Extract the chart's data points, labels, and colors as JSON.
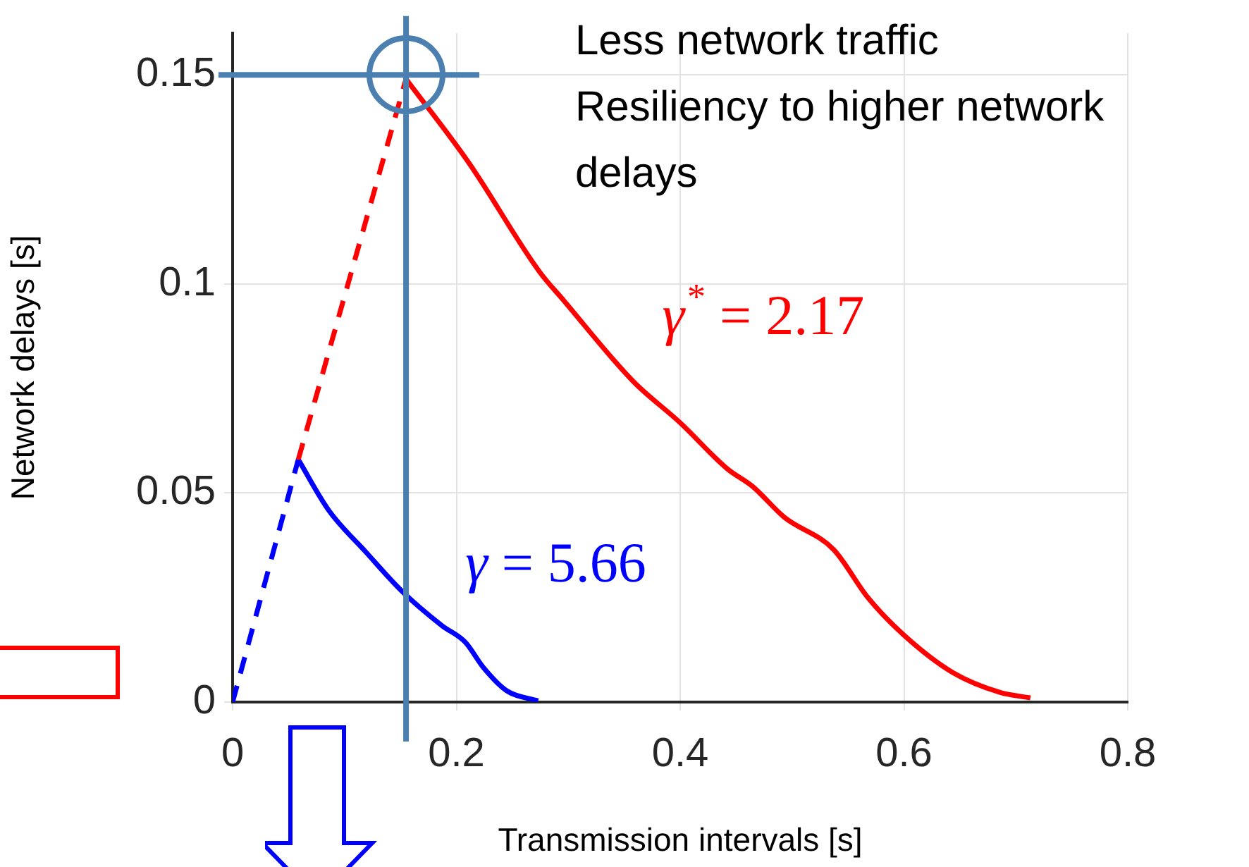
{
  "chart_data": {
    "type": "line",
    "xlabel": "Transmission intervals [s]",
    "ylabel": "Network delays [s]",
    "xlim": [
      0,
      0.8
    ],
    "xticks": [
      0,
      0.2,
      0.4,
      0.6,
      0.8
    ],
    "ylim": [
      0,
      0.16
    ],
    "yticks": [
      0,
      0.05,
      0.1,
      0.15
    ],
    "grid": true,
    "legend": false,
    "marker": "none",
    "series": [
      {
        "name": "γ$^{*}$ = 2.17",
        "color": "#ff0000",
        "line_style": "solid",
        "x": [
          0.155,
          0.211,
          0.274,
          0.296,
          0.358,
          0.4,
          0.442,
          0.465,
          0.493,
          0.537,
          0.568,
          0.6,
          0.644,
          0.686,
          0.713
        ],
        "values": [
          0.149,
          0.129,
          0.103,
          0.096,
          0.0767,
          0.0668,
          0.0558,
          0.0515,
          0.0442,
          0.0365,
          0.0249,
          0.016,
          0.007,
          0.0023,
          0.001
        ]
      },
      {
        "color": "#ff0000",
        "line_style": "dashed",
        "x": [
          0.0587,
          0.155
        ],
        "values": [
          0.058,
          0.149
        ]
      },
      {
        "name": "γ = 5.66",
        "color": "#0000ff",
        "line_style": "solid",
        "x": [
          0.0587,
          0.0858,
          0.119,
          0.151,
          0.187,
          0.208,
          0.224,
          0.245,
          0.273
        ],
        "values": [
          0.058,
          0.0459,
          0.0359,
          0.0266,
          0.0183,
          0.0143,
          0.0083,
          0.0027,
          0.0003
        ]
      },
      {
        "color": "#0000ff",
        "line_style": "dashed",
        "x": [
          0,
          0.0587
        ],
        "values": [
          0,
          0.058
        ]
      }
    ],
    "ref_lines": [
      {
        "axis": "x",
        "value": 0.155,
        "color": "#4a7fb0"
      },
      {
        "axis": "y",
        "value": 0.15,
        "color": "#4a7fb0"
      }
    ],
    "annotations": [
      "Less network traffic",
      "Resiliency to higher network delays"
    ]
  }
}
